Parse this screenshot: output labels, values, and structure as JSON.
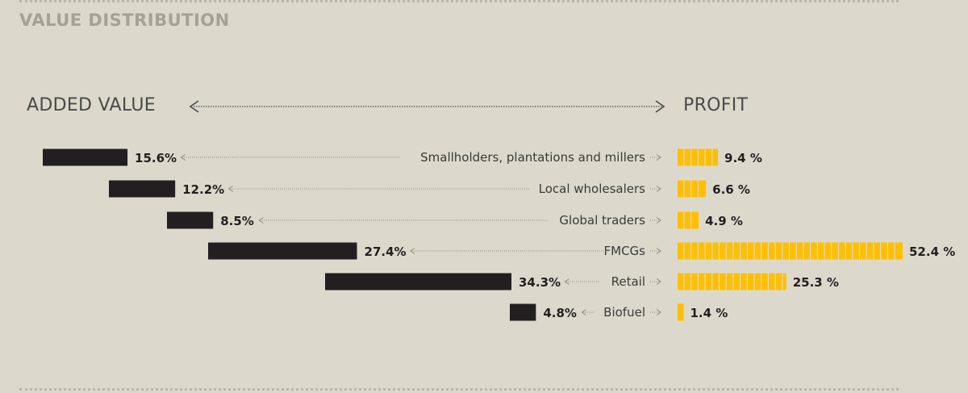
{
  "section_title": "VALUE DISTRIBUTION",
  "colors": {
    "background": "#dcd9cc",
    "added_value_bar": "#231f20",
    "profit_bar": "#ffbf00",
    "title": "#a5a294"
  },
  "chart_data": {
    "type": "bar",
    "xlabel_left": "ADDED VALUE",
    "xlabel_right": "PROFIT",
    "categories": [
      "Smallholders, plantations and millers",
      "Local wholesalers",
      "Global traders",
      "FMCGs",
      "Retail",
      "Biofuel"
    ],
    "series": [
      {
        "name": "ADDED VALUE",
        "values": [
          15.6,
          12.2,
          8.5,
          27.4,
          34.3,
          4.8
        ],
        "labels": [
          "15.6%",
          "12.2%",
          "8.5%",
          "27.4%",
          "34.3%",
          "4.8%"
        ]
      },
      {
        "name": "PROFIT",
        "values": [
          9.4,
          6.6,
          4.9,
          52.4,
          25.3,
          1.4
        ],
        "labels": [
          "9.4 %",
          "6.6 %",
          "4.9 %",
          "52.4 %",
          "25.3 %",
          "1.4 %"
        ]
      }
    ],
    "grid": false,
    "legend": "none"
  }
}
